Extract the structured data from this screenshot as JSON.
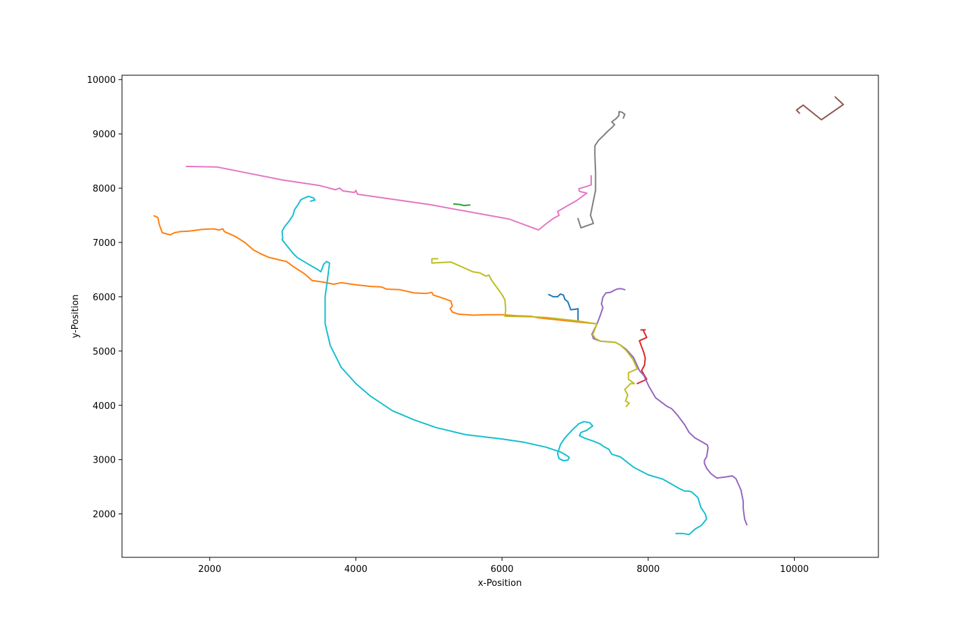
{
  "chart_data": {
    "type": "line",
    "title": "",
    "xlabel": "x-Position",
    "ylabel": "y-Position",
    "xlim": [
      800,
      11150
    ],
    "ylim": [
      1200,
      10080
    ],
    "xticks": [
      2000,
      4000,
      6000,
      8000,
      10000
    ],
    "yticks": [
      2000,
      3000,
      4000,
      5000,
      6000,
      7000,
      8000,
      9000,
      10000
    ],
    "grid": false,
    "legend": "none",
    "series": [
      {
        "color": "#1f77b4",
        "points": [
          [
            6640,
            6040
          ],
          [
            6700,
            6000
          ],
          [
            6760,
            6000
          ],
          [
            6800,
            6050
          ],
          [
            6840,
            6030
          ],
          [
            6860,
            5950
          ],
          [
            6900,
            5910
          ],
          [
            6940,
            5760
          ],
          [
            7000,
            5770
          ],
          [
            7040,
            5780
          ],
          [
            7040,
            5560
          ]
        ]
      },
      {
        "color": "#ff7f0e",
        "points": [
          [
            1240,
            7490
          ],
          [
            1290,
            7460
          ],
          [
            1310,
            7330
          ],
          [
            1350,
            7180
          ],
          [
            1460,
            7140
          ],
          [
            1520,
            7180
          ],
          [
            1600,
            7200
          ],
          [
            1720,
            7210
          ],
          [
            1900,
            7240
          ],
          [
            2050,
            7250
          ],
          [
            2130,
            7230
          ],
          [
            2180,
            7250
          ],
          [
            2200,
            7200
          ],
          [
            2350,
            7110
          ],
          [
            2480,
            7000
          ],
          [
            2600,
            6860
          ],
          [
            2700,
            6790
          ],
          [
            2800,
            6730
          ],
          [
            2950,
            6680
          ],
          [
            3050,
            6650
          ],
          [
            3150,
            6550
          ],
          [
            3300,
            6420
          ],
          [
            3400,
            6300
          ],
          [
            3550,
            6270
          ],
          [
            3700,
            6230
          ],
          [
            3800,
            6260
          ],
          [
            4000,
            6220
          ],
          [
            4200,
            6190
          ],
          [
            4350,
            6180
          ],
          [
            4420,
            6140
          ],
          [
            4600,
            6130
          ],
          [
            4800,
            6070
          ],
          [
            4960,
            6060
          ],
          [
            5040,
            6080
          ],
          [
            5060,
            6030
          ],
          [
            5200,
            5970
          ],
          [
            5300,
            5920
          ],
          [
            5320,
            5830
          ],
          [
            5290,
            5780
          ],
          [
            5320,
            5720
          ],
          [
            5400,
            5680
          ],
          [
            5600,
            5660
          ],
          [
            5800,
            5670
          ],
          [
            6000,
            5670
          ],
          [
            6200,
            5650
          ],
          [
            6400,
            5640
          ],
          [
            6500,
            5610
          ],
          [
            7000,
            5540
          ],
          [
            7300,
            5500
          ]
        ]
      },
      {
        "color": "#2ca02c",
        "points": [
          [
            5340,
            7710
          ],
          [
            5420,
            7700
          ],
          [
            5480,
            7680
          ],
          [
            5560,
            7690
          ]
        ]
      },
      {
        "color": "#d62728",
        "points": [
          [
            7900,
            5390
          ],
          [
            7960,
            5390
          ],
          [
            7930,
            5390
          ],
          [
            7980,
            5250
          ],
          [
            7880,
            5190
          ],
          [
            7940,
            4970
          ],
          [
            7960,
            4870
          ],
          [
            7950,
            4740
          ],
          [
            7910,
            4640
          ],
          [
            7980,
            4480
          ],
          [
            7850,
            4400
          ]
        ]
      },
      {
        "color": "#9467bd",
        "points": [
          [
            7680,
            6130
          ],
          [
            7630,
            6150
          ],
          [
            7570,
            6140
          ],
          [
            7480,
            6080
          ],
          [
            7420,
            6070
          ],
          [
            7380,
            5990
          ],
          [
            7360,
            5870
          ],
          [
            7380,
            5800
          ],
          [
            7340,
            5640
          ],
          [
            7300,
            5500
          ],
          [
            7230,
            5310
          ],
          [
            7250,
            5230
          ],
          [
            7350,
            5180
          ],
          [
            7550,
            5160
          ],
          [
            7620,
            5110
          ],
          [
            7700,
            5030
          ],
          [
            7800,
            4880
          ],
          [
            7880,
            4640
          ],
          [
            7940,
            4550
          ],
          [
            8010,
            4350
          ],
          [
            8100,
            4140
          ],
          [
            8200,
            4040
          ],
          [
            8260,
            3980
          ],
          [
            8320,
            3940
          ],
          [
            8400,
            3820
          ],
          [
            8500,
            3640
          ],
          [
            8560,
            3500
          ],
          [
            8640,
            3400
          ],
          [
            8720,
            3340
          ],
          [
            8810,
            3270
          ],
          [
            8820,
            3220
          ],
          [
            8800,
            3050
          ],
          [
            8770,
            2990
          ],
          [
            8770,
            2930
          ],
          [
            8800,
            2840
          ],
          [
            8860,
            2740
          ],
          [
            8940,
            2660
          ],
          [
            9050,
            2680
          ],
          [
            9150,
            2700
          ],
          [
            9200,
            2650
          ],
          [
            9270,
            2440
          ],
          [
            9300,
            2230
          ],
          [
            9300,
            2100
          ],
          [
            9320,
            1900
          ],
          [
            9350,
            1800
          ]
        ]
      },
      {
        "color": "#8c564b",
        "points": [
          [
            10070,
            9380
          ],
          [
            10030,
            9440
          ],
          [
            10120,
            9530
          ],
          [
            10370,
            9260
          ],
          [
            10670,
            9540
          ],
          [
            10560,
            9680
          ]
        ]
      },
      {
        "color": "#e377c2",
        "points": [
          [
            1680,
            8400
          ],
          [
            2100,
            8390
          ],
          [
            3000,
            8150
          ],
          [
            3500,
            8050
          ],
          [
            3720,
            7970
          ],
          [
            3780,
            8000
          ],
          [
            3820,
            7950
          ],
          [
            3980,
            7920
          ],
          [
            4000,
            7960
          ],
          [
            4020,
            7890
          ],
          [
            5000,
            7700
          ],
          [
            6100,
            7430
          ],
          [
            6500,
            7230
          ],
          [
            6600,
            7340
          ],
          [
            6700,
            7440
          ],
          [
            6780,
            7500
          ],
          [
            6760,
            7570
          ],
          [
            6900,
            7680
          ],
          [
            7020,
            7770
          ],
          [
            7100,
            7850
          ],
          [
            7160,
            7910
          ],
          [
            7060,
            7940
          ],
          [
            7050,
            7990
          ],
          [
            7150,
            8030
          ],
          [
            7220,
            8060
          ],
          [
            7220,
            8230
          ]
        ]
      },
      {
        "color": "#7f7f7f",
        "points": [
          [
            7040,
            7440
          ],
          [
            7080,
            7270
          ],
          [
            7250,
            7350
          ],
          [
            7210,
            7500
          ],
          [
            7240,
            7700
          ],
          [
            7280,
            7960
          ],
          [
            7280,
            8300
          ],
          [
            7270,
            8600
          ],
          [
            7270,
            8780
          ],
          [
            7320,
            8880
          ],
          [
            7390,
            8970
          ],
          [
            7440,
            9040
          ],
          [
            7490,
            9100
          ],
          [
            7540,
            9170
          ],
          [
            7500,
            9220
          ],
          [
            7560,
            9280
          ],
          [
            7600,
            9340
          ],
          [
            7600,
            9410
          ],
          [
            7640,
            9400
          ],
          [
            7680,
            9360
          ],
          [
            7660,
            9290
          ]
        ]
      },
      {
        "color": "#bcbd22",
        "points": [
          [
            5120,
            6700
          ],
          [
            5040,
            6700
          ],
          [
            5040,
            6620
          ],
          [
            5160,
            6630
          ],
          [
            5300,
            6640
          ],
          [
            5500,
            6520
          ],
          [
            5600,
            6460
          ],
          [
            5700,
            6440
          ],
          [
            5720,
            6420
          ],
          [
            5780,
            6380
          ],
          [
            5820,
            6400
          ],
          [
            5860,
            6300
          ],
          [
            6000,
            6040
          ],
          [
            6040,
            5940
          ],
          [
            6050,
            5760
          ],
          [
            6040,
            5640
          ],
          [
            6400,
            5630
          ],
          [
            6600,
            5620
          ],
          [
            7000,
            5560
          ],
          [
            7300,
            5500
          ],
          [
            7240,
            5300
          ],
          [
            7280,
            5230
          ],
          [
            7350,
            5180
          ],
          [
            7550,
            5160
          ],
          [
            7620,
            5110
          ],
          [
            7700,
            5010
          ],
          [
            7790,
            4850
          ],
          [
            7850,
            4670
          ],
          [
            7730,
            4600
          ],
          [
            7730,
            4480
          ],
          [
            7810,
            4400
          ],
          [
            7760,
            4400
          ],
          [
            7680,
            4290
          ],
          [
            7720,
            4190
          ],
          [
            7690,
            4080
          ],
          [
            7740,
            4040
          ],
          [
            7700,
            3980
          ]
        ]
      },
      {
        "color": "#17becf",
        "points": [
          [
            3380,
            7760
          ],
          [
            3440,
            7780
          ],
          [
            3420,
            7820
          ],
          [
            3350,
            7850
          ],
          [
            3250,
            7790
          ],
          [
            3200,
            7680
          ],
          [
            3180,
            7640
          ],
          [
            3160,
            7600
          ],
          [
            3140,
            7500
          ],
          [
            3080,
            7380
          ],
          [
            3030,
            7300
          ],
          [
            2990,
            7210
          ],
          [
            3000,
            7080
          ],
          [
            2990,
            7050
          ],
          [
            3080,
            6900
          ],
          [
            3140,
            6800
          ],
          [
            3200,
            6720
          ],
          [
            3350,
            6600
          ],
          [
            3480,
            6500
          ],
          [
            3520,
            6460
          ],
          [
            3540,
            6520
          ],
          [
            3560,
            6600
          ],
          [
            3600,
            6650
          ],
          [
            3640,
            6620
          ],
          [
            3620,
            6400
          ],
          [
            3600,
            6200
          ],
          [
            3580,
            6000
          ],
          [
            3580,
            5500
          ],
          [
            3650,
            5100
          ],
          [
            3800,
            4700
          ],
          [
            4000,
            4400
          ],
          [
            4200,
            4170
          ],
          [
            4500,
            3900
          ],
          [
            4800,
            3730
          ],
          [
            5100,
            3590
          ],
          [
            5500,
            3460
          ],
          [
            6000,
            3380
          ],
          [
            6300,
            3320
          ],
          [
            6600,
            3230
          ],
          [
            6800,
            3140
          ],
          [
            6880,
            3080
          ],
          [
            6920,
            3040
          ],
          [
            6900,
            2990
          ],
          [
            6840,
            2980
          ],
          [
            6780,
            3020
          ],
          [
            6760,
            3110
          ],
          [
            6800,
            3280
          ],
          [
            6860,
            3400
          ],
          [
            6950,
            3530
          ],
          [
            7050,
            3660
          ],
          [
            7120,
            3700
          ],
          [
            7200,
            3680
          ],
          [
            7240,
            3620
          ],
          [
            7160,
            3540
          ],
          [
            7080,
            3500
          ],
          [
            7060,
            3440
          ],
          [
            7140,
            3390
          ],
          [
            7250,
            3340
          ],
          [
            7340,
            3290
          ],
          [
            7380,
            3250
          ],
          [
            7460,
            3190
          ],
          [
            7500,
            3100
          ],
          [
            7620,
            3050
          ],
          [
            7800,
            2860
          ],
          [
            8000,
            2720
          ],
          [
            8200,
            2640
          ],
          [
            8370,
            2510
          ],
          [
            8420,
            2470
          ],
          [
            8500,
            2420
          ],
          [
            8560,
            2420
          ],
          [
            8600,
            2400
          ],
          [
            8680,
            2300
          ],
          [
            8720,
            2120
          ],
          [
            8780,
            2000
          ],
          [
            8800,
            1910
          ],
          [
            8730,
            1790
          ],
          [
            8640,
            1720
          ],
          [
            8560,
            1620
          ],
          [
            8470,
            1640
          ],
          [
            8380,
            1640
          ]
        ]
      }
    ]
  }
}
